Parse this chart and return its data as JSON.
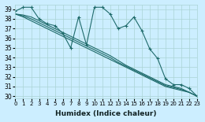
{
  "xlabel": "Humidex (Indice chaleur)",
  "bg_color": "#cceeff",
  "line_color": "#1f6b6b",
  "grid_color": "#aad4d4",
  "xlim": [
    0,
    23
  ],
  "ylim": [
    29.8,
    39.5
  ],
  "yticks": [
    30,
    31,
    32,
    33,
    34,
    35,
    36,
    37,
    38,
    39
  ],
  "xticks": [
    0,
    1,
    2,
    3,
    4,
    5,
    6,
    7,
    8,
    9,
    10,
    11,
    12,
    13,
    14,
    15,
    16,
    17,
    18,
    19,
    20,
    21,
    22,
    23
  ],
  "noisy_line": [
    38.8,
    39.2,
    39.2,
    38.0,
    37.5,
    37.3,
    36.5,
    35.0,
    38.2,
    35.3,
    39.2,
    39.2,
    38.5,
    37.0,
    37.3,
    38.2,
    36.8,
    34.9,
    33.9,
    31.8,
    31.2,
    31.2,
    30.8,
    30.0
  ],
  "trend_lines": [
    [
      38.5,
      38.2,
      37.8,
      37.4,
      37.0,
      36.6,
      36.2,
      35.8,
      35.4,
      35.0,
      34.6,
      34.2,
      33.8,
      33.4,
      33.0,
      32.6,
      32.2,
      31.8,
      31.4,
      31.0,
      30.8,
      30.6,
      30.4,
      30.0
    ],
    [
      38.5,
      38.3,
      38.0,
      37.6,
      37.2,
      36.8,
      36.4,
      36.0,
      35.6,
      35.2,
      34.8,
      34.4,
      34.0,
      33.5,
      33.1,
      32.7,
      32.3,
      31.9,
      31.5,
      31.1,
      30.9,
      30.7,
      30.4,
      30.0
    ],
    [
      38.5,
      38.4,
      38.2,
      37.8,
      37.4,
      37.0,
      36.6,
      36.2,
      35.8,
      35.4,
      35.0,
      34.6,
      34.2,
      33.7,
      33.2,
      32.8,
      32.4,
      32.0,
      31.6,
      31.2,
      31.0,
      30.8,
      30.4,
      30.0
    ]
  ]
}
